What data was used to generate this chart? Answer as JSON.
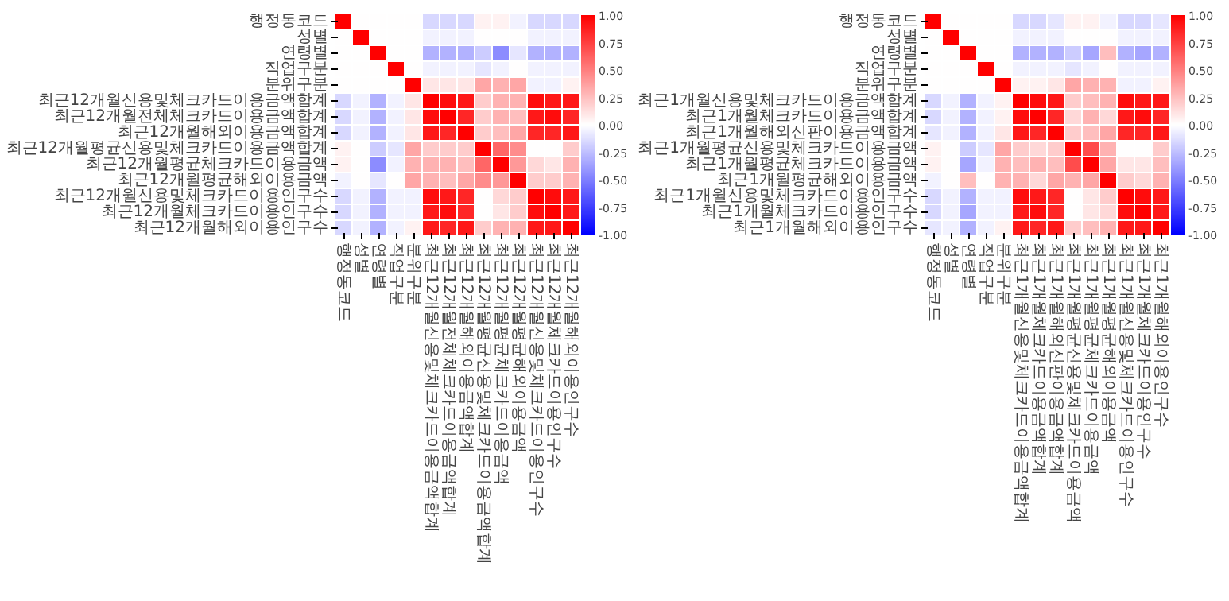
{
  "chart_data": [
    {
      "type": "heatmap",
      "categories": [
        "행정동코드",
        "성별",
        "연령별",
        "직업구분",
        "분위구분",
        "최근12개월신용및체크카드이용금액합계",
        "최근12개월전체체크카드이용금액합계",
        "최근12개월해외이용금액합계",
        "최근12개월평균신용및체크카드이용금액합계",
        "최근12개월평균체크카드이용금액",
        "최근12개월평균해외이용금액",
        "최근12개월신용및체크카드이용인구수",
        "최근12개월체크카드이용인구수",
        "최근12개월해외이용인구수"
      ],
      "y_categories": [
        "행정동코드",
        "성별",
        "연령별",
        "직업구분",
        "분위구분",
        "최근12개월신용및체크카드이용금액합계",
        "최근12개월전체체크카드이용금액합계",
        "최근12개월해외이용금액합계",
        "최근12개월평균신용및체크카드이용금액합계",
        "최근12개월평균체크카드이용금액",
        "최근12개월평균해외이용금액",
        "최근12개월신용및체크카드이용인구수",
        "최근12개월체크카드이용인구수",
        "최근12개월해외이용인구수"
      ],
      "cells": [
        [
          1,
          0,
          0,
          0,
          0,
          -0.15,
          -0.15,
          -0.15,
          0.05,
          0.05,
          -0.05,
          -0.15,
          -0.15,
          -0.15
        ],
        [
          0,
          1,
          0,
          0,
          0,
          -0.05,
          -0.05,
          -0.05,
          0,
          0,
          0,
          -0.05,
          -0.05,
          -0.05
        ],
        [
          0,
          0,
          1,
          0,
          0,
          -0.3,
          -0.3,
          -0.3,
          -0.2,
          -0.45,
          -0.1,
          -0.3,
          -0.3,
          -0.3
        ],
        [
          0,
          0,
          0,
          1,
          0,
          -0.05,
          -0.05,
          -0.05,
          -0.1,
          -0.05,
          0,
          -0.05,
          -0.05,
          -0.05
        ],
        [
          0,
          0,
          0,
          0,
          1,
          0.1,
          0.1,
          0.1,
          0.35,
          0.3,
          0.35,
          -0.05,
          -0.05,
          0.05
        ],
        [
          -0.15,
          -0.05,
          -0.3,
          -0.05,
          0.1,
          1,
          0.95,
          0.9,
          0.2,
          0.3,
          0.3,
          0.95,
          0.9,
          0.9
        ],
        [
          -0.15,
          -0.05,
          -0.3,
          -0.05,
          0.1,
          0.95,
          1,
          0.85,
          0.2,
          0.3,
          0.25,
          0.9,
          0.95,
          0.85
        ],
        [
          -0.15,
          -0.05,
          -0.3,
          -0.05,
          0.1,
          0.9,
          0.85,
          1,
          0.2,
          0.25,
          0.35,
          0.85,
          0.85,
          0.9
        ],
        [
          0.05,
          0,
          -0.2,
          -0.1,
          0.35,
          0.2,
          0.2,
          0.2,
          1,
          0.6,
          0.45,
          0,
          0,
          0.2
        ],
        [
          0.05,
          0,
          -0.45,
          -0.05,
          0.3,
          0.3,
          0.3,
          0.25,
          0.6,
          1,
          0.4,
          0.15,
          0.1,
          0.3
        ],
        [
          -0.05,
          0,
          -0.1,
          0,
          0.35,
          0.3,
          0.25,
          0.35,
          0.45,
          0.4,
          1,
          0.2,
          0.2,
          0.3
        ],
        [
          -0.15,
          -0.05,
          -0.3,
          -0.05,
          -0.05,
          0.95,
          0.9,
          0.85,
          0,
          0.15,
          0.2,
          1,
          0.95,
          0.9
        ],
        [
          -0.15,
          -0.05,
          -0.3,
          -0.05,
          -0.05,
          0.9,
          0.95,
          0.85,
          0,
          0.1,
          0.2,
          0.95,
          1,
          0.9
        ],
        [
          -0.15,
          -0.05,
          -0.3,
          -0.05,
          0.05,
          0.9,
          0.85,
          0.9,
          0.2,
          0.3,
          0.3,
          0.9,
          0.9,
          1
        ]
      ],
      "clim": [
        -1,
        1
      ],
      "cticks": [
        {
          "value": -1,
          "label": "-1.00"
        },
        {
          "value": -0.75,
          "label": "-0.75"
        },
        {
          "value": -0.5,
          "label": "-0.50"
        },
        {
          "value": -0.25,
          "label": "-0.25"
        },
        {
          "value": 0,
          "label": "0.00"
        },
        {
          "value": 0.25,
          "label": "0.25"
        },
        {
          "value": 0.5,
          "label": "0.50"
        },
        {
          "value": 0.75,
          "label": "0.75"
        },
        {
          "value": 1,
          "label": "1.00"
        }
      ]
    },
    {
      "type": "heatmap",
      "categories": [
        "행정동코드",
        "성별",
        "연령별",
        "직업구분",
        "분위구분",
        "최근1개월신용및체크카드이용금액합계",
        "최근1개월체크카드이용금액합계",
        "최근1개월해외신판이용금액합계",
        "최근1개월평균신용및체크카드이용금액",
        "최근1개월평균체크카드이용금액",
        "최근1개월평균해외이용금액",
        "최근1개월신용및체크카드이용인구수",
        "최근1개월체크카드이용인구수",
        "최근1개월해외이용인구수"
      ],
      "y_categories": [
        "행정동코드",
        "성별",
        "연령별",
        "직업구분",
        "분위구분",
        "최근1개월신용및체크카드이용금액합계",
        "최근1개월체크카드이용금액합계",
        "최근1개월해외신판이용금액합계",
        "최근1개월평균신용및체크카드이용금액",
        "최근1개월평균체크카드이용금액",
        "최근1개월평균해외이용금액",
        "최근1개월신용및체크카드이용인구수",
        "최근1개월체크카드이용인구수",
        "최근1개월해외이용인구수"
      ],
      "cells": [
        [
          1,
          0,
          0,
          0,
          0,
          -0.15,
          -0.15,
          -0.1,
          0.05,
          0.05,
          -0.05,
          -0.15,
          -0.15,
          -0.1
        ],
        [
          0,
          1,
          0,
          0,
          0,
          -0.05,
          -0.05,
          -0.05,
          0,
          0,
          0,
          -0.05,
          -0.05,
          -0.05
        ],
        [
          0,
          0,
          1,
          0,
          0,
          -0.3,
          -0.3,
          -0.3,
          -0.2,
          -0.35,
          0.25,
          -0.3,
          -0.35,
          -0.3
        ],
        [
          0,
          0,
          0,
          1,
          0,
          -0.05,
          -0.05,
          -0.05,
          -0.1,
          -0.05,
          0,
          -0.05,
          -0.05,
          -0.05
        ],
        [
          0,
          0,
          0,
          0,
          1,
          0.05,
          0.05,
          0.1,
          0.35,
          0.3,
          0.3,
          -0.05,
          -0.05,
          0.05
        ],
        [
          -0.15,
          -0.05,
          -0.3,
          -0.05,
          0.05,
          1,
          0.95,
          0.9,
          0.2,
          0.25,
          0.3,
          0.95,
          0.9,
          0.9
        ],
        [
          -0.15,
          -0.05,
          -0.3,
          -0.05,
          0.05,
          0.95,
          1,
          0.85,
          0.15,
          0.3,
          0.15,
          0.9,
          0.95,
          0.85
        ],
        [
          -0.1,
          -0.05,
          -0.3,
          -0.05,
          0.1,
          0.9,
          0.85,
          1,
          0.2,
          0.25,
          0.35,
          0.85,
          0.85,
          0.9
        ],
        [
          0.05,
          0,
          -0.2,
          -0.1,
          0.35,
          0.2,
          0.15,
          0.2,
          1,
          0.7,
          0.3,
          0,
          0,
          0.2
        ],
        [
          0.05,
          0,
          -0.35,
          -0.05,
          0.3,
          0.25,
          0.3,
          0.25,
          0.7,
          1,
          0.35,
          0.1,
          0.1,
          0.25
        ],
        [
          -0.05,
          0,
          0.25,
          0,
          0.3,
          0.3,
          0.15,
          0.35,
          0.3,
          0.35,
          1,
          0.2,
          0.15,
          0.3
        ],
        [
          -0.15,
          -0.05,
          -0.3,
          -0.05,
          -0.05,
          0.95,
          0.9,
          0.85,
          0,
          0.1,
          0.2,
          1,
          0.95,
          0.9
        ],
        [
          -0.15,
          -0.05,
          -0.35,
          -0.05,
          -0.05,
          0.9,
          0.95,
          0.85,
          0,
          0.1,
          0.15,
          0.95,
          1,
          0.9
        ],
        [
          -0.1,
          -0.05,
          -0.3,
          -0.05,
          0.05,
          0.9,
          0.85,
          0.9,
          0.2,
          0.25,
          0.3,
          0.9,
          0.9,
          1
        ]
      ],
      "clim": [
        -1,
        1
      ],
      "cticks": [
        {
          "value": -1,
          "label": "-1.00"
        },
        {
          "value": -0.75,
          "label": "-0.75"
        },
        {
          "value": -0.5,
          "label": "-0.50"
        },
        {
          "value": -0.25,
          "label": "-0.25"
        },
        {
          "value": 0,
          "label": "0.00"
        },
        {
          "value": 0.25,
          "label": "0.25"
        },
        {
          "value": 0.5,
          "label": "0.50"
        },
        {
          "value": 0.75,
          "label": "0.75"
        },
        {
          "value": 1,
          "label": "1.00"
        }
      ]
    }
  ]
}
